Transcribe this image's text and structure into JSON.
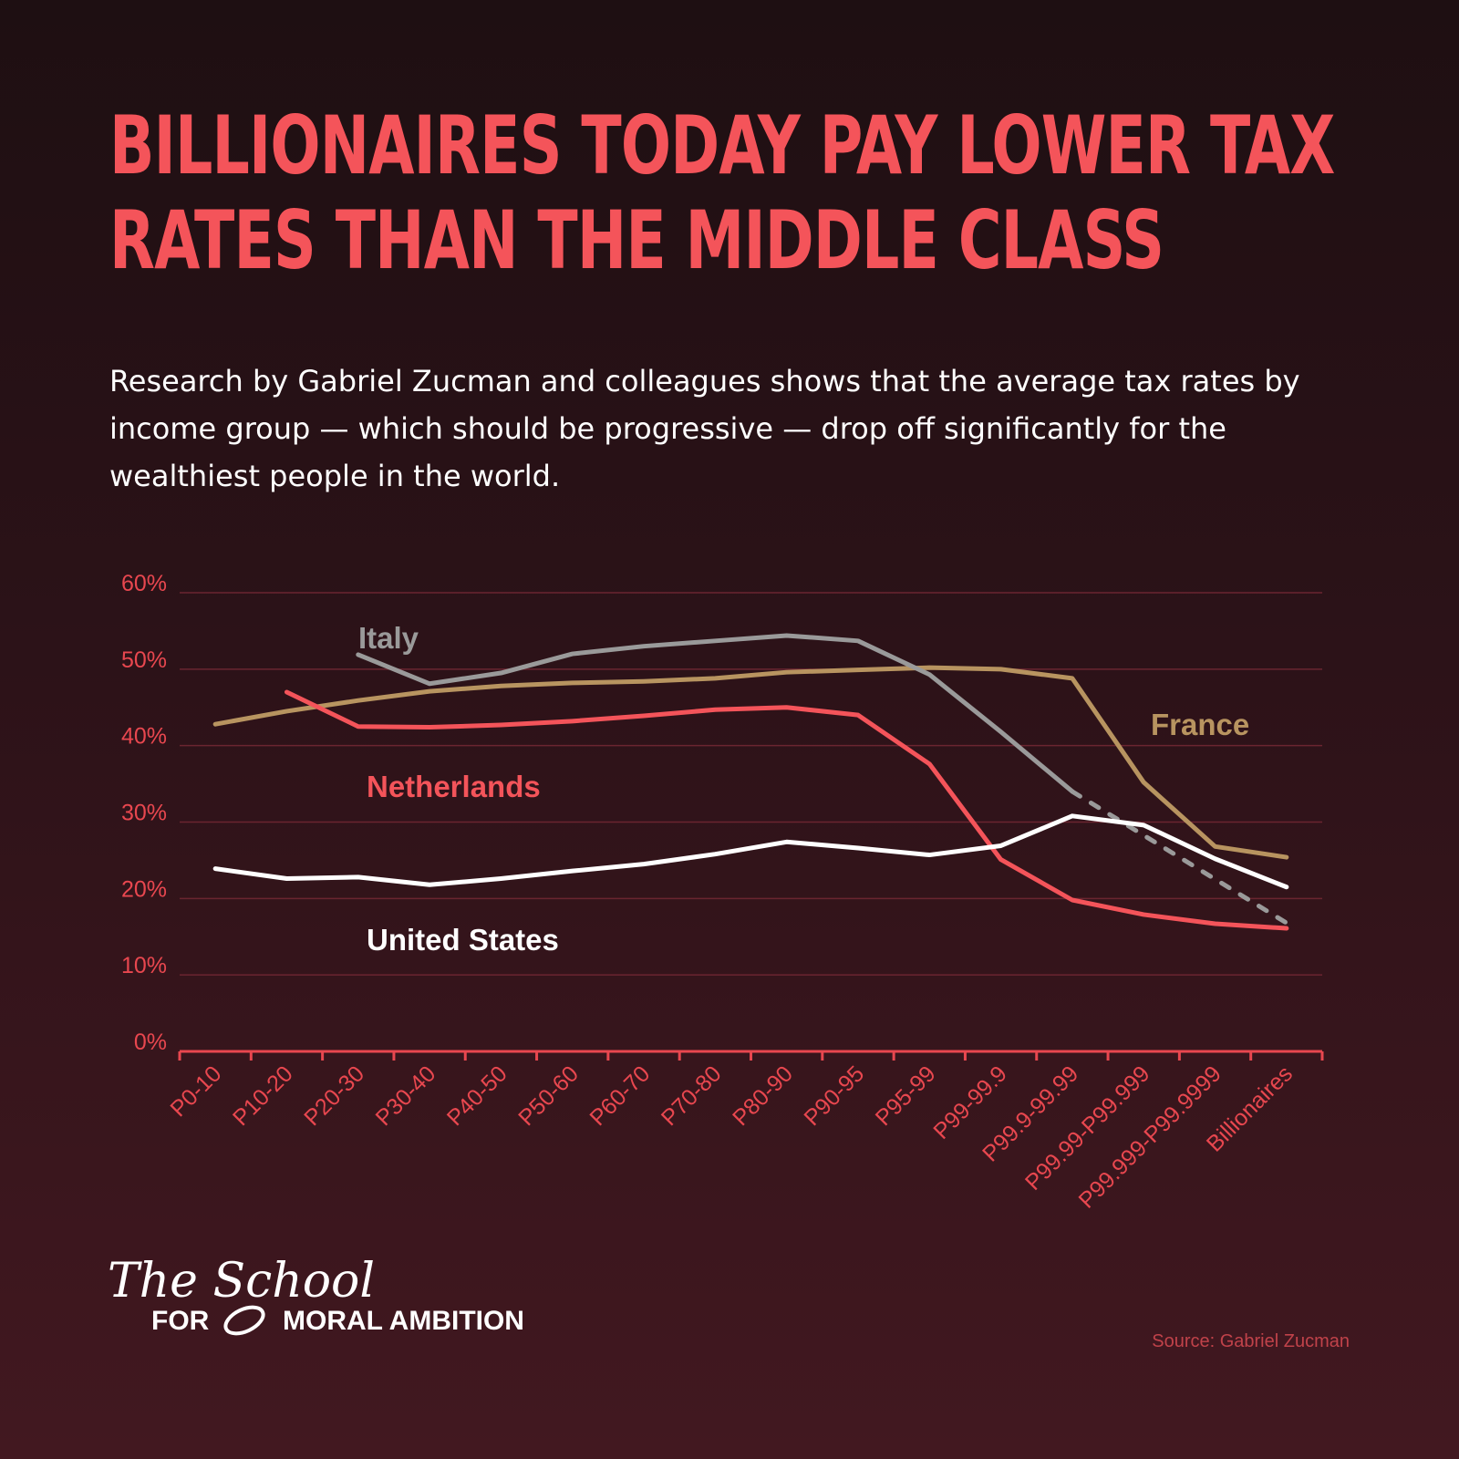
{
  "title_line1": "BILLIONAIRES TODAY PAY LOWER TAX",
  "title_line2": "RATES THAN THE MIDDLE CLASS",
  "subtitle": "Research by Gabriel Zucman and colleagues shows that the average tax rates by income group — which should be progressive — drop off significantly for the wealthiest people in the world.",
  "logo": {
    "line1": "The School",
    "for": "FOR",
    "rest": "MORAL AMBITION"
  },
  "source": "Source: Gabriel Zucman",
  "chart_data": {
    "type": "line",
    "ylim": [
      0,
      60
    ],
    "yticks": [
      "0%",
      "10%",
      "20%",
      "30%",
      "40%",
      "50%",
      "60%"
    ],
    "grid": true,
    "categories": [
      "P0-10",
      "P10-20",
      "P20-30",
      "P30-40",
      "P40-50",
      "P50-60",
      "P60-70",
      "P70-80",
      "P80-90",
      "P90-95",
      "P95-99",
      "P99-99.9",
      "P99.9-99.99",
      "P99.99-P99.999",
      "P99.999-P99.9999",
      "Billionaires"
    ],
    "series": [
      {
        "name": "France",
        "color": "#b89460",
        "values": [
          42.8,
          44.5,
          45.9,
          47.1,
          47.8,
          48.2,
          48.4,
          48.8,
          49.6,
          49.9,
          50.2,
          50.0,
          48.8,
          35.2,
          26.8,
          25.4
        ]
      },
      {
        "name": "Italy",
        "color": "#9a9a9a",
        "values": [
          null,
          null,
          51.9,
          48.1,
          49.5,
          52.0,
          53.0,
          53.7,
          54.4,
          53.7,
          49.3,
          41.8,
          34.0,
          null,
          null,
          16.8
        ],
        "dashed_gap": true
      },
      {
        "name": "Netherlands",
        "color": "#f4545a",
        "values": [
          null,
          47.0,
          42.5,
          42.4,
          42.7,
          43.2,
          43.9,
          44.7,
          45.0,
          44.0,
          37.6,
          25.1,
          19.8,
          17.9,
          16.7,
          16.1
        ]
      },
      {
        "name": "United States",
        "color": "#ffffff",
        "values": [
          23.9,
          22.6,
          22.8,
          21.8,
          22.6,
          23.6,
          24.5,
          25.8,
          27.4,
          26.6,
          25.7,
          26.9,
          30.8,
          29.6,
          25.2,
          21.5
        ]
      }
    ]
  }
}
